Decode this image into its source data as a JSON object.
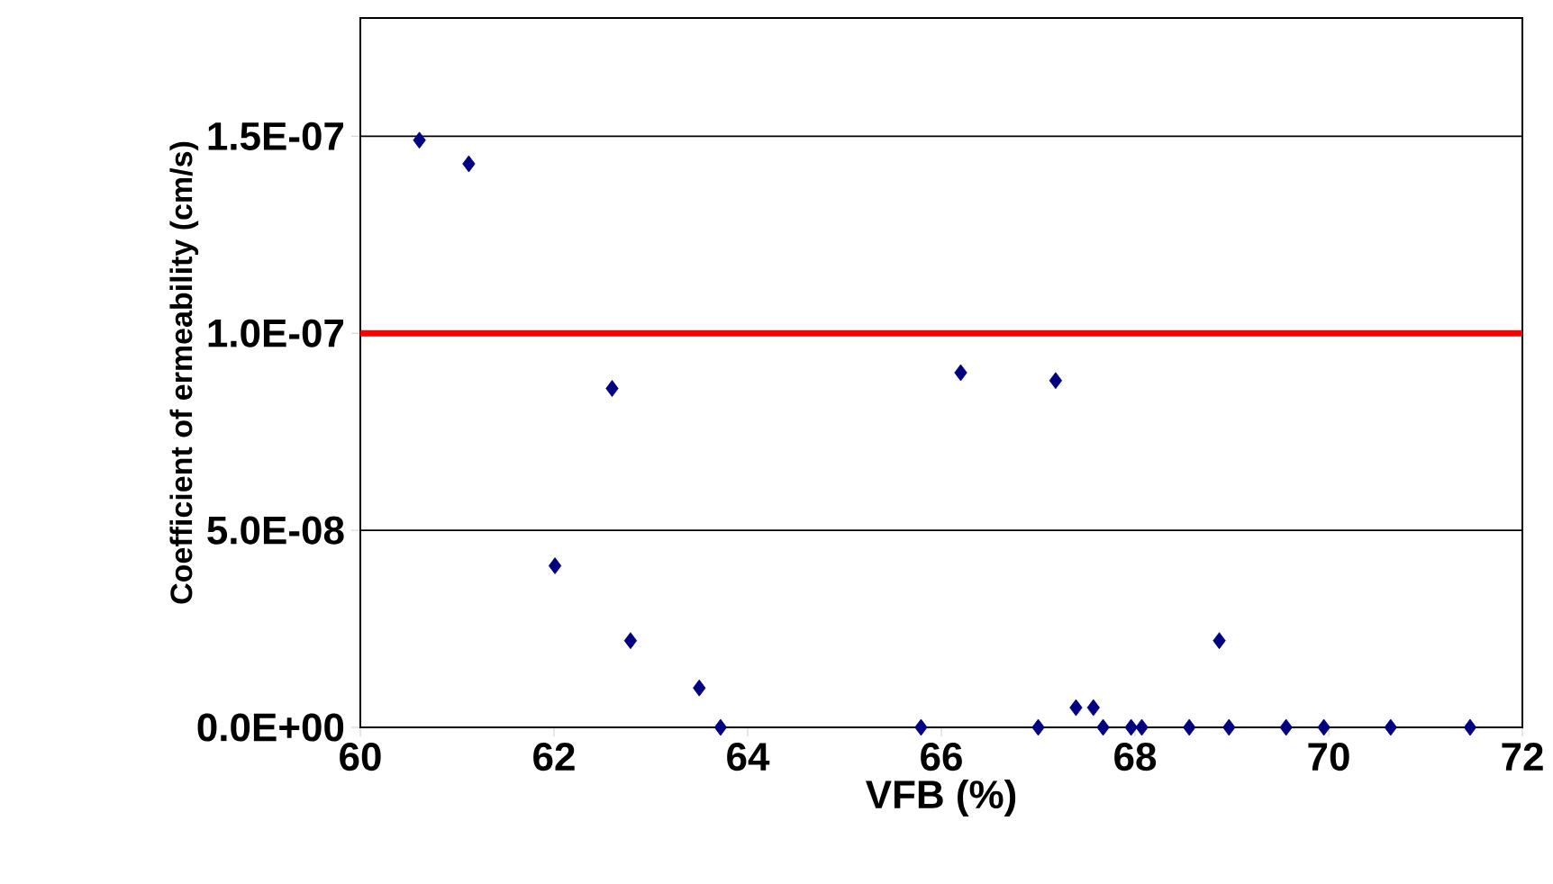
{
  "chart_data": {
    "type": "scatter",
    "xlabel": "VFB  (%)",
    "ylabel": "Coefficient of ermeability (cm/s)",
    "x": [
      60.61,
      61.12,
      62.6,
      62.01,
      62.79,
      63.5,
      63.72,
      65.79,
      66.2,
      67.0,
      67.18,
      67.39,
      67.57,
      67.67,
      67.96,
      68.07,
      68.56,
      68.87,
      68.97,
      69.56,
      69.95,
      70.64,
      71.46
    ],
    "series": [
      {
        "color": "#000080",
        "values": [
          1.49e-07,
          1.43e-07,
          8.6e-08,
          4.1e-08,
          2.2e-08,
          1e-08,
          0,
          0,
          9e-08,
          0,
          8.8e-08,
          5e-09,
          5e-09,
          0,
          0,
          0,
          0,
          2.2e-08,
          0,
          0,
          0,
          0,
          0
        ]
      }
    ],
    "xlim": [
      60,
      72
    ],
    "ylim": [
      0,
      1.8e-07
    ],
    "xticks": [
      60,
      62,
      64,
      66,
      68,
      70,
      72
    ],
    "yticks": [
      {
        "value": 0,
        "label": "0.0E+00"
      },
      {
        "value": 5e-08,
        "label": "5.0E-08"
      },
      {
        "value": 1e-07,
        "label": "1.0E-07"
      },
      {
        "value": 1.5e-07,
        "label": "1.5E-07"
      }
    ],
    "grid": "y",
    "marker": "diamond",
    "ref_lines": [
      {
        "axis": "y",
        "value": 1e-07,
        "color": "#ff0000"
      }
    ]
  }
}
